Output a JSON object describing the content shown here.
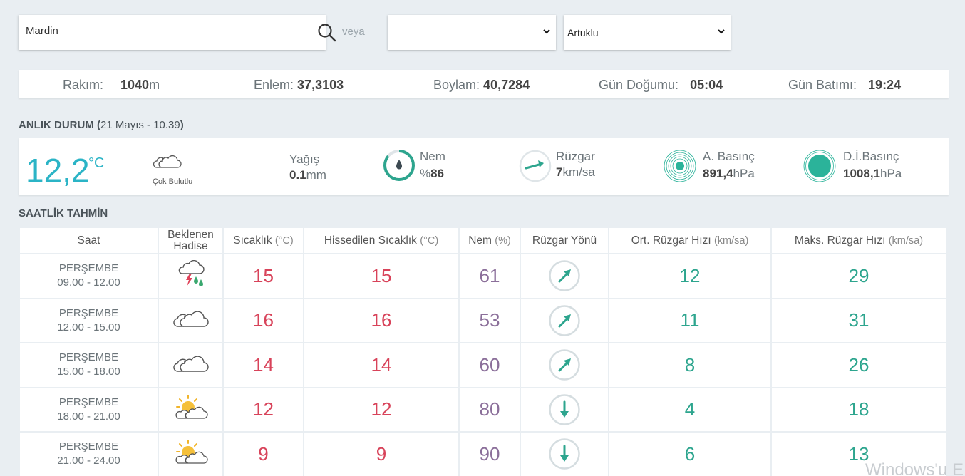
{
  "search": {
    "value": "Mardin"
  },
  "or_label": "veya",
  "province_select": {
    "selected": ""
  },
  "district_select": {
    "selected": "Artuklu"
  },
  "info": {
    "altitude_label": "Rakım:",
    "altitude_value": "1040",
    "altitude_unit": "m",
    "lat_label": "Enlem:",
    "lat_value": "37,3103",
    "lon_label": "Boylam:",
    "lon_value": "40,7284",
    "sunrise_label": "Gün Doğumu:",
    "sunrise_value": "05:04",
    "sunset_label": "Gün Batımı:",
    "sunset_value": "19:24"
  },
  "current": {
    "title": "ANLIK DURUM",
    "datetime": "21 Mayıs - 10.39",
    "temp": "12,2",
    "temp_unit": "°C",
    "condition": "Çok Bulutlu",
    "condition_icon": "cloud-icon",
    "precip_label": "Yağış",
    "precip_value": "0.1",
    "precip_unit": "mm",
    "humidity_label": "Nem",
    "humidity_prefix": "%",
    "humidity_value": "86",
    "wind_label": "Rüzgar",
    "wind_value": "7",
    "wind_unit": "km/sa",
    "pressure_label": "A. Basınç",
    "pressure_value": "891,4",
    "pressure_unit": "hPa",
    "sea_pressure_label": "D.İ.Basınç",
    "sea_pressure_value": "1008,1",
    "sea_pressure_unit": "hPa"
  },
  "hourly": {
    "title": "SAATLİK TAHMİN",
    "headers": {
      "time": "Saat",
      "event_line1": "Beklenen",
      "event_line2": "Hadise",
      "temp": "Sıcaklık",
      "temp_unit": "(°C)",
      "feels": "Hissedilen Sıcaklık",
      "feels_unit": "(°C)",
      "humidity": "Nem",
      "humidity_unit": "(%)",
      "wind_dir": "Rüzgar Yönü",
      "avg_wind": "Ort. Rüzgar Hızı",
      "avg_wind_unit": "(km/sa)",
      "max_wind": "Maks. Rüzgar Hızı",
      "max_wind_unit": "(km/sa)"
    },
    "rows": [
      {
        "day": "PERŞEMBE",
        "range": "09.00 - 12.00",
        "icon": "thunder-rain-icon",
        "temp": "15",
        "feels": "15",
        "humidity": "61",
        "wind_dir": "northeast",
        "avg": "12",
        "max": "29"
      },
      {
        "day": "PERŞEMBE",
        "range": "12.00 - 15.00",
        "icon": "cloud-icon",
        "temp": "16",
        "feels": "16",
        "humidity": "53",
        "wind_dir": "northeast",
        "avg": "11",
        "max": "31"
      },
      {
        "day": "PERŞEMBE",
        "range": "15.00 - 18.00",
        "icon": "cloud-icon",
        "temp": "14",
        "feels": "14",
        "humidity": "60",
        "wind_dir": "northeast",
        "avg": "8",
        "max": "26"
      },
      {
        "day": "PERŞEMBE",
        "range": "18.00 - 21.00",
        "icon": "partly-cloudy-icon",
        "temp": "12",
        "feels": "12",
        "humidity": "80",
        "wind_dir": "south",
        "avg": "4",
        "max": "18"
      },
      {
        "day": "PERŞEMBE",
        "range": "21.00 - 24.00",
        "icon": "partly-cloudy-icon",
        "temp": "9",
        "feels": "9",
        "humidity": "90",
        "wind_dir": "south",
        "avg": "6",
        "max": "13"
      }
    ]
  },
  "watermark": "Windows'u E",
  "colors": {
    "teal": "#2bb4c6",
    "green": "#2da58e",
    "red": "#d8435a",
    "purple": "#8b6f9a"
  }
}
